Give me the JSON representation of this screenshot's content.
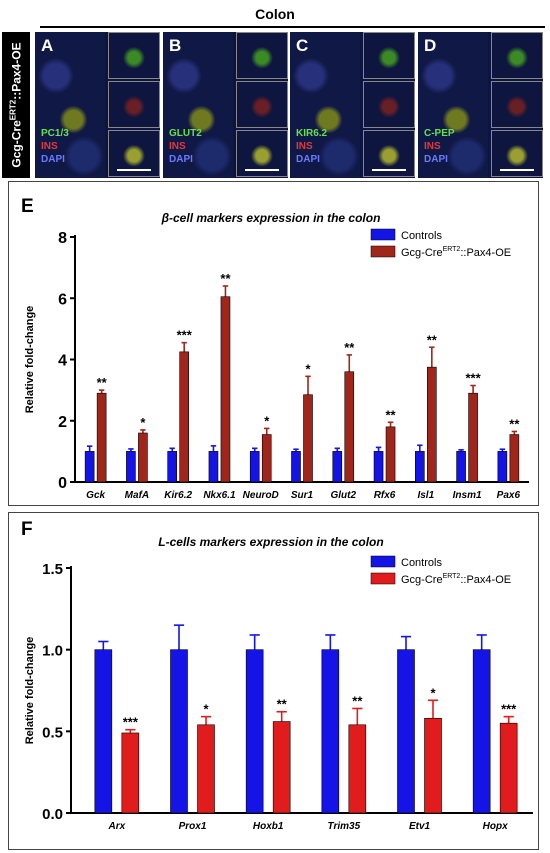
{
  "header": {
    "title": "Colon",
    "side_label": "Gcg-CreERT2::Pax4-OE",
    "side_label_base": "Gcg-Cre",
    "side_label_sup": "ERT2",
    "side_label_rest": "::Pax4-OE"
  },
  "micrographs": [
    {
      "letter": "A",
      "marker": "PC1/3",
      "ins": "INS",
      "dapi": "DAPI"
    },
    {
      "letter": "B",
      "marker": "GLUT2",
      "ins": "INS",
      "dapi": "DAPI"
    },
    {
      "letter": "C",
      "marker": "KIR6.2",
      "ins": "INS",
      "dapi": "DAPI"
    },
    {
      "letter": "D",
      "marker": "C-PEP",
      "ins": "INS",
      "dapi": "DAPI"
    }
  ],
  "colors": {
    "controls": "#1414e6",
    "pax4_e": "#a0261b",
    "pax4_f": "#e11c1c"
  },
  "chart_data": [
    {
      "panel": "E",
      "type": "bar",
      "title": "β-cell markers expression in the colon",
      "ylabel": "Relative fold-change",
      "xlabel": "",
      "ylim": [
        0,
        8
      ],
      "yticks": [
        0,
        2,
        4,
        6,
        8
      ],
      "categories": [
        "Gck",
        "MafA",
        "Kir6.2",
        "Nkx6.1",
        "NeuroD",
        "Sur1",
        "Glut2",
        "Rfx6",
        "Isl1",
        "Insm1",
        "Pax6"
      ],
      "legend_position": "top-right",
      "series": [
        {
          "name": "Controls",
          "values": [
            1.0,
            1.0,
            1.0,
            1.0,
            1.0,
            1.0,
            1.0,
            1.0,
            1.0,
            1.0,
            1.0
          ],
          "errors": [
            0.17,
            0.08,
            0.1,
            0.18,
            0.1,
            0.07,
            0.1,
            0.13,
            0.2,
            0.05,
            0.07
          ]
        },
        {
          "name": "Gcg-CreERT2::Pax4-OE",
          "name_base": "Gcg-Cre",
          "name_sup": "ERT2",
          "name_rest": "::Pax4-OE",
          "values": [
            2.9,
            1.6,
            4.25,
            6.05,
            1.55,
            2.85,
            3.6,
            1.8,
            3.75,
            2.9,
            1.55
          ],
          "errors": [
            0.1,
            0.1,
            0.3,
            0.35,
            0.2,
            0.6,
            0.55,
            0.15,
            0.65,
            0.25,
            0.1
          ]
        }
      ],
      "significance": [
        "**",
        "*",
        "***",
        "**",
        "*",
        "*",
        "**",
        "**",
        "**",
        "***",
        "**"
      ]
    },
    {
      "panel": "F",
      "type": "bar",
      "title": "L-cells markers expression in the colon",
      "ylabel": "Relative fold-change",
      "xlabel": "",
      "ylim": [
        0,
        1.5
      ],
      "yticks": [
        "0.0",
        "0.5",
        "1.0",
        "1.5"
      ],
      "categories": [
        "Arx",
        "Prox1",
        "Hoxb1",
        "Trim35",
        "Etv1",
        "Hopx"
      ],
      "legend_position": "top-right",
      "series": [
        {
          "name": "Controls",
          "values": [
            1.0,
            1.0,
            1.0,
            1.0,
            1.0,
            1.0
          ],
          "errors": [
            0.05,
            0.15,
            0.09,
            0.09,
            0.08,
            0.09
          ]
        },
        {
          "name": "Gcg-CreERT2::Pax4-OE",
          "name_base": "Gcg-Cre",
          "name_sup": "ERT2",
          "name_rest": "::Pax4-OE",
          "values": [
            0.49,
            0.54,
            0.56,
            0.54,
            0.58,
            0.55
          ],
          "errors": [
            0.02,
            0.05,
            0.06,
            0.1,
            0.11,
            0.04
          ]
        }
      ],
      "significance": [
        "***",
        "*",
        "**",
        "**",
        "*",
        "***"
      ]
    }
  ]
}
